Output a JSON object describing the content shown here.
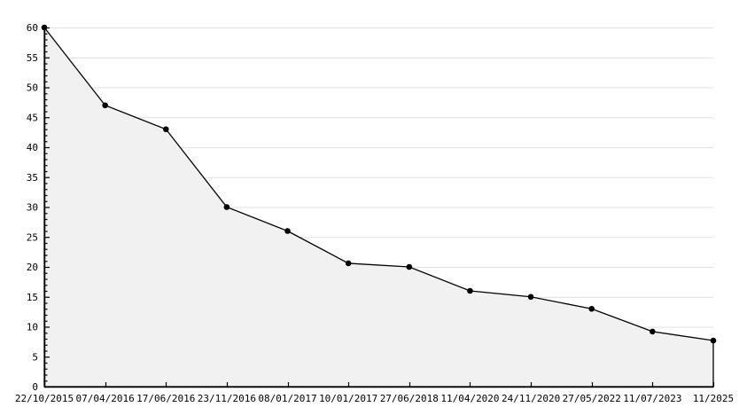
{
  "chart_data": {
    "type": "area",
    "title": "",
    "xlabel": "",
    "ylabel": "",
    "categories": [
      "22/10/2015",
      "07/04/2016",
      "17/06/2016",
      "23/11/2016",
      "08/01/2017",
      "10/01/2017",
      "27/06/2018",
      "11/04/2020",
      "24/11/2020",
      "27/05/2022",
      "11/07/2023",
      "11/2025"
    ],
    "values": [
      60,
      47,
      43,
      30,
      26,
      20.6,
      20,
      16,
      15,
      13,
      9.2,
      7.7
    ],
    "ylim": [
      0,
      60
    ],
    "ytick_step": 5,
    "y_minor_step": 1,
    "ytick_labels": [
      "0",
      "5",
      "10",
      "15",
      "20",
      "25",
      "30",
      "35",
      "40",
      "45",
      "50",
      "55",
      "60"
    ],
    "grid": "horizontal-only",
    "legend_position": "none",
    "marker": "filled-dot",
    "colors": {
      "background": "#ffffff",
      "area_fill": "#f1f1f1",
      "line": "#000000",
      "marker": "#000000",
      "grid": "#e0e0e0",
      "axis": "#000000",
      "text": "#000000"
    }
  }
}
